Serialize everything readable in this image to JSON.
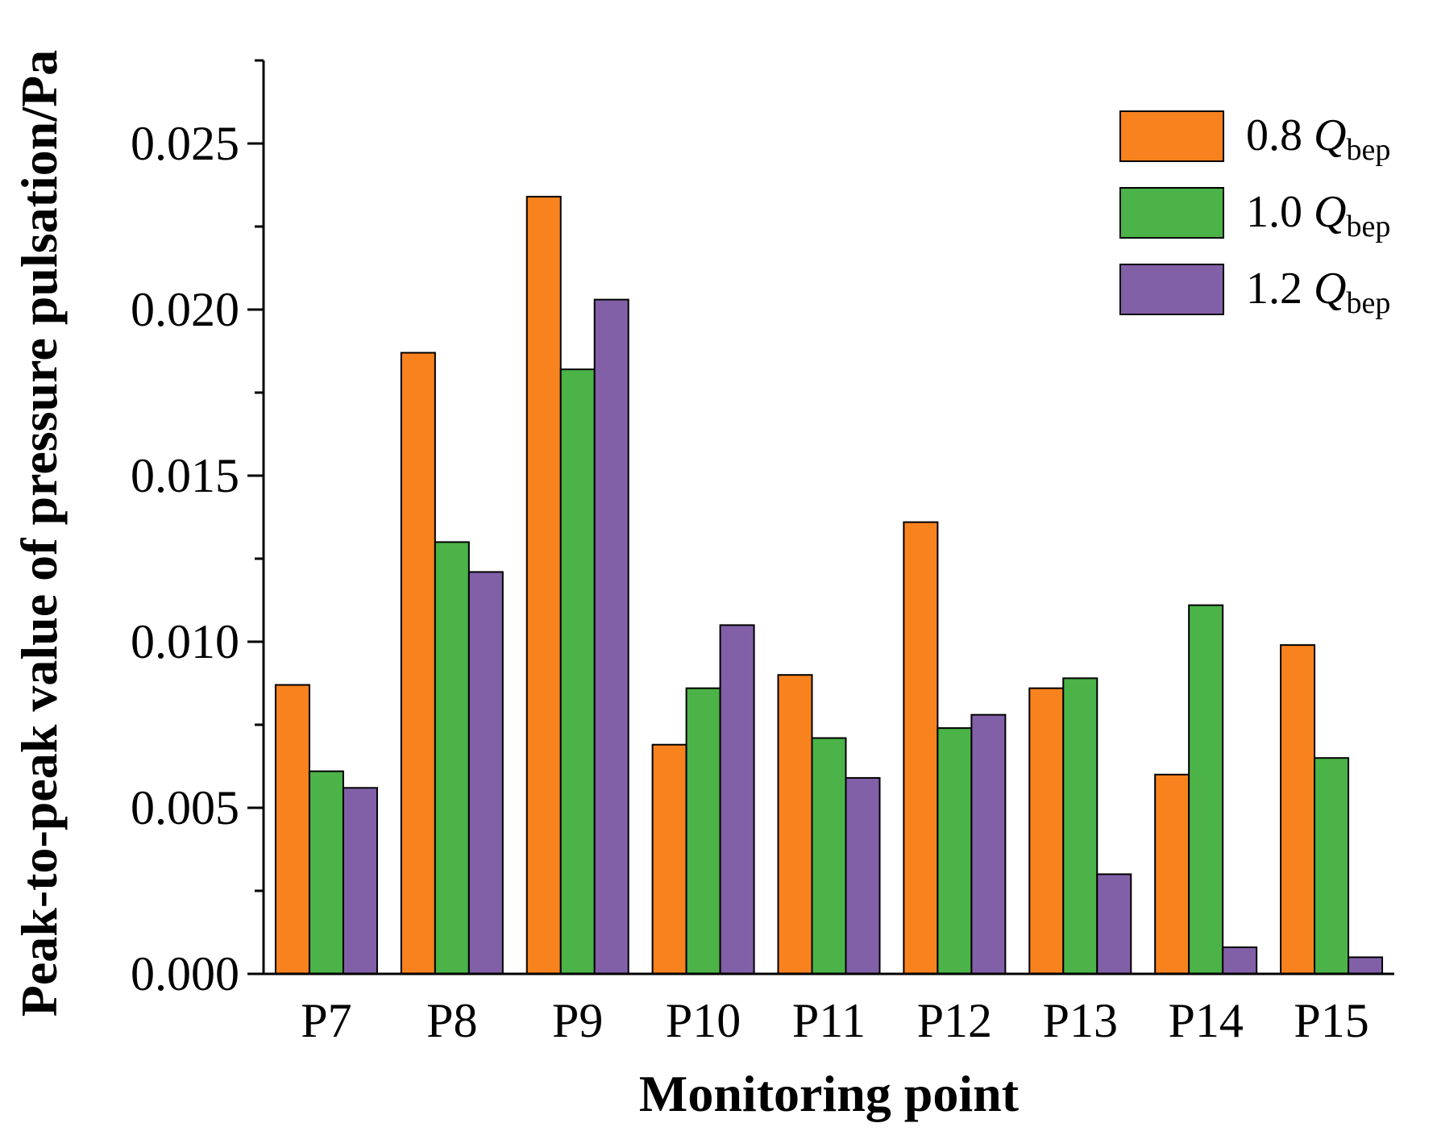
{
  "chart_data": {
    "type": "bar",
    "title": "",
    "xlabel": "Monitoring point",
    "ylabel": "Peak-to-peak value of pressure pulsation/Pa",
    "ylim": [
      0,
      0.0275
    ],
    "yticks": [
      "0.000",
      "0.005",
      "0.010",
      "0.015",
      "0.020",
      "0.025"
    ],
    "ytick_values": [
      0,
      0.005,
      0.01,
      0.015,
      0.02,
      0.025
    ],
    "categories": [
      "P7",
      "P8",
      "P9",
      "P10",
      "P11",
      "P12",
      "P13",
      "P14",
      "P15"
    ],
    "legend_position": "top-right",
    "series": [
      {
        "name": "0.8",
        "legend_symbol": "Q",
        "legend_subscript": "bep",
        "color": "#F8821E",
        "values": [
          0.0087,
          0.0187,
          0.0234,
          0.0069,
          0.009,
          0.0136,
          0.0086,
          0.006,
          0.0099
        ]
      },
      {
        "name": "1.0",
        "legend_symbol": "Q",
        "legend_subscript": "bep",
        "color": "#4BB347",
        "values": [
          0.0061,
          0.013,
          0.0182,
          0.0086,
          0.0071,
          0.0074,
          0.0089,
          0.0111,
          0.0065
        ]
      },
      {
        "name": "1.2",
        "legend_symbol": "Q",
        "legend_subscript": "bep",
        "color": "#8260A8",
        "values": [
          0.0056,
          0.0121,
          0.0203,
          0.0105,
          0.0059,
          0.0078,
          0.003,
          0.0008,
          0.0005
        ]
      }
    ]
  }
}
